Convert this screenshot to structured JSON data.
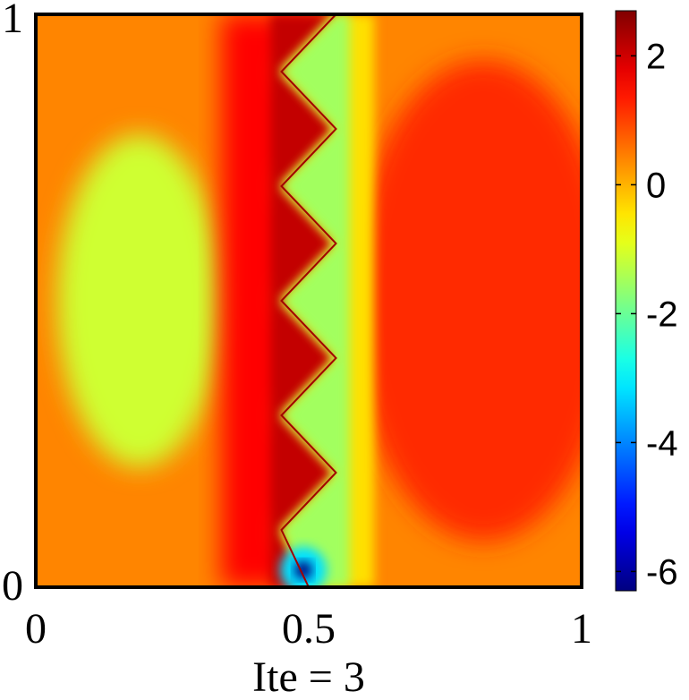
{
  "chart_data": {
    "type": "heatmap",
    "title": "",
    "xlabel": "Ite = 3",
    "ylabel": "",
    "xlim": [
      0,
      1
    ],
    "ylim": [
      0,
      1
    ],
    "x_ticks": [
      {
        "value": 0,
        "label": "0"
      },
      {
        "value": 0.5,
        "label": "0.5"
      },
      {
        "value": 1,
        "label": "1"
      }
    ],
    "y_ticks": [
      {
        "value": 0,
        "label": "0"
      },
      {
        "value": 1,
        "label": "1"
      }
    ],
    "colorbar": {
      "colormap": "jet",
      "range": [
        -6.3,
        2.7
      ],
      "ticks": [
        {
          "value": 2,
          "label": "2"
        },
        {
          "value": 0,
          "label": "0"
        },
        {
          "value": -2,
          "label": "-2"
        },
        {
          "value": -4,
          "label": "-4"
        },
        {
          "value": -6,
          "label": "-6"
        }
      ]
    },
    "background_value": 0.4,
    "interface_zigzag": [
      [
        0.55,
        1.0
      ],
      [
        0.45,
        0.9
      ],
      [
        0.55,
        0.8
      ],
      [
        0.45,
        0.7
      ],
      [
        0.55,
        0.6
      ],
      [
        0.45,
        0.5
      ],
      [
        0.55,
        0.4
      ],
      [
        0.45,
        0.3
      ],
      [
        0.55,
        0.2
      ],
      [
        0.45,
        0.1
      ],
      [
        0.5,
        0.0
      ]
    ],
    "features": [
      {
        "kind": "blob",
        "center": [
          0.19,
          0.5
        ],
        "radius": [
          0.15,
          0.29
        ],
        "value": -1.1
      },
      {
        "kind": "blob",
        "center": [
          0.82,
          0.5
        ],
        "radius": [
          0.24,
          0.42
        ],
        "value": 1.2
      },
      {
        "kind": "band-left-of-interface",
        "value": 2.1
      },
      {
        "kind": "band-right-of-interface",
        "value": -1.5
      },
      {
        "kind": "minimum",
        "center": [
          0.49,
          0.03
        ],
        "value": -6.3
      }
    ]
  }
}
